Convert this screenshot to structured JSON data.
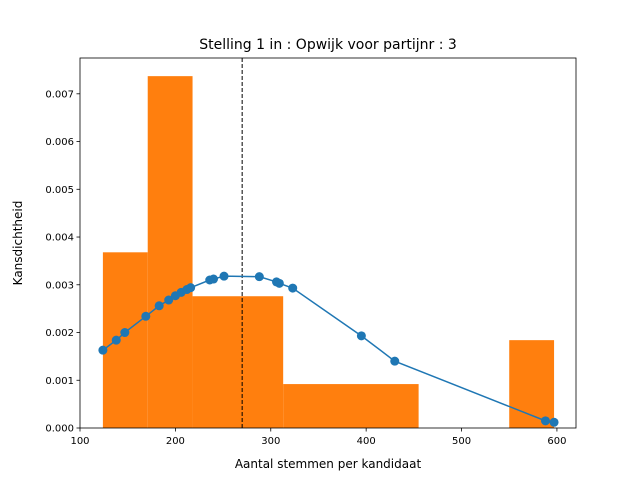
{
  "chart_data": {
    "type": "bar",
    "title": "Stelling 1 in : Opwijk voor partijnr : 3",
    "xlabel": "Aantal stemmen per kandidaat",
    "ylabel": "Kansdichtheid",
    "xlim": [
      100,
      620
    ],
    "ylim": [
      0,
      0.00775
    ],
    "xticks": [
      100,
      200,
      300,
      400,
      500,
      600
    ],
    "yticks": [
      0.0,
      0.001,
      0.002,
      0.003,
      0.004,
      0.005,
      0.006,
      0.007
    ],
    "ytick_labels": [
      "0.000",
      "0.001",
      "0.002",
      "0.003",
      "0.004",
      "0.005",
      "0.006",
      "0.007"
    ],
    "grid": false,
    "histogram": {
      "color": "#ff7f0e",
      "bins": [
        {
          "x0": 124,
          "x1": 171,
          "density": 0.00368
        },
        {
          "x0": 171,
          "x1": 218,
          "density": 0.00737
        },
        {
          "x0": 218,
          "x1": 313,
          "density": 0.00276
        },
        {
          "x0": 313,
          "x1": 455,
          "density": 0.00092
        },
        {
          "x0": 550,
          "x1": 597,
          "density": 0.00184
        }
      ]
    },
    "density_curve": {
      "color": "#1f77b4",
      "points": [
        {
          "x": 124,
          "y": 0.00163
        },
        {
          "x": 138,
          "y": 0.00184
        },
        {
          "x": 147,
          "y": 0.002
        },
        {
          "x": 169,
          "y": 0.00234
        },
        {
          "x": 183,
          "y": 0.00256
        },
        {
          "x": 193,
          "y": 0.00268
        },
        {
          "x": 200,
          "y": 0.00277
        },
        {
          "x": 206,
          "y": 0.00284
        },
        {
          "x": 212,
          "y": 0.0029
        },
        {
          "x": 216,
          "y": 0.00294
        },
        {
          "x": 236,
          "y": 0.0031
        },
        {
          "x": 240,
          "y": 0.00312
        },
        {
          "x": 251,
          "y": 0.00318
        },
        {
          "x": 288,
          "y": 0.00317
        },
        {
          "x": 306,
          "y": 0.00306
        },
        {
          "x": 309,
          "y": 0.00303
        },
        {
          "x": 323,
          "y": 0.00293
        },
        {
          "x": 395,
          "y": 0.00193
        },
        {
          "x": 430,
          "y": 0.0014
        },
        {
          "x": 588,
          "y": 0.00015
        },
        {
          "x": 597,
          "y": 0.00012
        }
      ]
    },
    "reference_line": {
      "x": 270,
      "style": "dashed",
      "color": "#000000"
    }
  }
}
